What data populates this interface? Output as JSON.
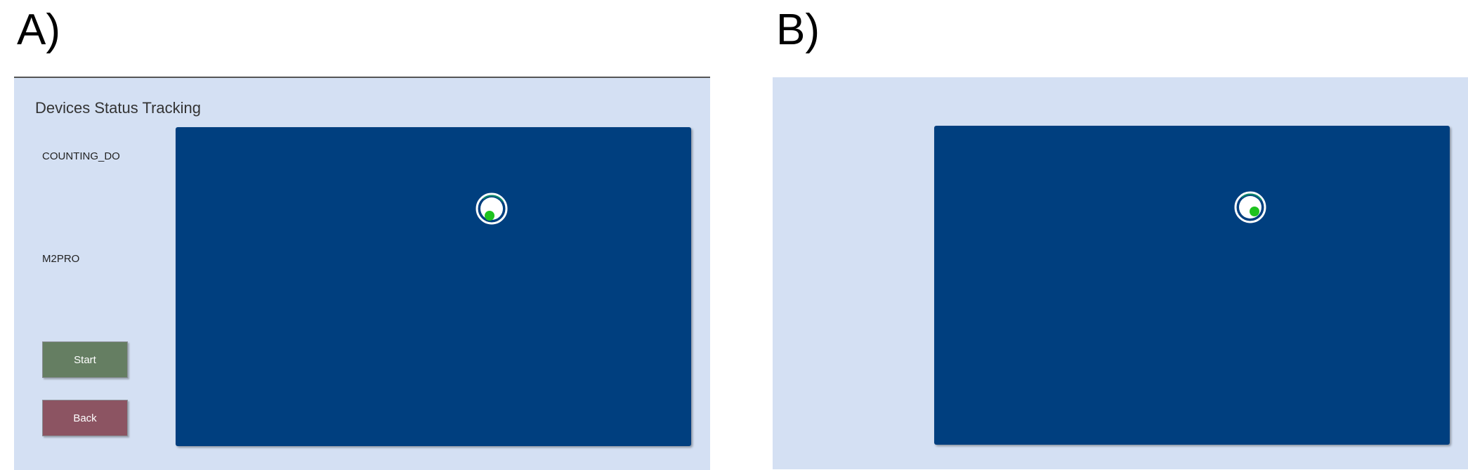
{
  "figure_labels": {
    "a": "A)",
    "b": "B)"
  },
  "panel_a": {
    "title": "Devices Status Tracking",
    "devices": [
      "COUNTING_DO",
      "M2PRO"
    ],
    "buttons": {
      "start": {
        "label": "Start",
        "color": "#657e62"
      },
      "back": {
        "label": "Back",
        "color": "#8c5462"
      }
    },
    "tracking_area_color": "#003f7f",
    "marker": {
      "icon": "device-location-icon",
      "ring_color": "#ffffff",
      "dot_color": "#1ec21e",
      "accent": "#0d8a6a"
    }
  },
  "panel_b": {
    "tracking_area_color": "#003f7f",
    "marker": {
      "icon": "device-location-icon",
      "ring_color": "#ffffff",
      "dot_color": "#1ec21e",
      "accent": "#0d8a6a"
    }
  }
}
